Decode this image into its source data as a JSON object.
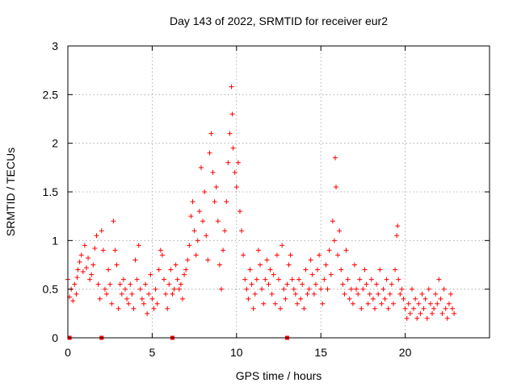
{
  "chart_data": {
    "type": "scatter",
    "title": "Day 143 of 2022, SRMTID for receiver eur2",
    "xlabel": "GPS time / hours",
    "ylabel": "SRMTID / TECUs",
    "xlim": [
      0,
      25
    ],
    "ylim": [
      0,
      3
    ],
    "x_ticks": [
      "0",
      "5",
      "10",
      "15",
      "20"
    ],
    "y_ticks": [
      "0",
      "0.5",
      "1",
      "1.5",
      "2",
      "2.5",
      "3"
    ],
    "grid": true,
    "marker": "+",
    "series_color": "#ff0000",
    "series": [
      {
        "name": "SRMTID",
        "points": [
          [
            0.0,
            0.6
          ],
          [
            0.1,
            0.42
          ],
          [
            0.2,
            0.5
          ],
          [
            0.3,
            0.38
          ],
          [
            0.4,
            0.55
          ],
          [
            0.5,
            0.45
          ],
          [
            0.55,
            0.62
          ],
          [
            0.6,
            0.7
          ],
          [
            0.7,
            0.78
          ],
          [
            0.8,
            0.85
          ],
          [
            0.9,
            0.68
          ],
          [
            1.0,
            0.95
          ],
          [
            1.1,
            0.72
          ],
          [
            1.2,
            0.82
          ],
          [
            1.3,
            0.6
          ],
          [
            1.4,
            0.65
          ],
          [
            1.5,
            0.75
          ],
          [
            1.6,
            0.92
          ],
          [
            1.7,
            1.05
          ],
          [
            1.8,
            0.55
          ],
          [
            1.9,
            0.4
          ],
          [
            2.0,
            1.1
          ],
          [
            2.1,
            0.9
          ],
          [
            2.2,
            0.5
          ],
          [
            2.3,
            0.45
          ],
          [
            2.4,
            0.7
          ],
          [
            2.5,
            0.55
          ],
          [
            2.6,
            0.35
          ],
          [
            2.7,
            1.2
          ],
          [
            2.8,
            0.9
          ],
          [
            2.9,
            0.75
          ],
          [
            3.0,
            0.3
          ],
          [
            3.1,
            0.55
          ],
          [
            3.2,
            0.45
          ],
          [
            3.3,
            0.6
          ],
          [
            3.4,
            0.5
          ],
          [
            3.5,
            0.4
          ],
          [
            3.6,
            0.35
          ],
          [
            3.7,
            0.55
          ],
          [
            3.8,
            0.45
          ],
          [
            3.9,
            0.3
          ],
          [
            4.0,
            0.8
          ],
          [
            4.1,
            0.6
          ],
          [
            4.2,
            0.95
          ],
          [
            4.3,
            0.5
          ],
          [
            4.4,
            0.4
          ],
          [
            4.5,
            0.35
          ],
          [
            4.6,
            0.55
          ],
          [
            4.7,
            0.25
          ],
          [
            4.8,
            0.45
          ],
          [
            4.9,
            0.65
          ],
          [
            5.0,
            0.4
          ],
          [
            5.1,
            0.3
          ],
          [
            5.2,
            0.5
          ],
          [
            5.3,
            0.35
          ],
          [
            5.4,
            0.7
          ],
          [
            5.5,
            0.9
          ],
          [
            5.6,
            0.85
          ],
          [
            5.7,
            0.6
          ],
          [
            5.8,
            0.45
          ],
          [
            5.9,
            0.3
          ],
          [
            6.0,
            0.55
          ],
          [
            6.1,
            0.7
          ],
          [
            6.2,
            0.45
          ],
          [
            6.3,
            0.5
          ],
          [
            6.4,
            0.75
          ],
          [
            6.5,
            0.6
          ],
          [
            6.6,
            0.5
          ],
          [
            6.7,
            0.55
          ],
          [
            6.8,
            0.4
          ],
          [
            6.9,
            0.65
          ],
          [
            7.0,
            0.7
          ],
          [
            7.1,
            0.8
          ],
          [
            7.2,
            0.95
          ],
          [
            7.3,
            1.25
          ],
          [
            7.4,
            1.4
          ],
          [
            7.5,
            1.1
          ],
          [
            7.6,
            0.85
          ],
          [
            7.7,
            1.0
          ],
          [
            7.8,
            1.3
          ],
          [
            7.9,
            1.75
          ],
          [
            8.0,
            1.2
          ],
          [
            8.1,
            1.5
          ],
          [
            8.2,
            1.05
          ],
          [
            8.3,
            0.8
          ],
          [
            8.4,
            1.9
          ],
          [
            8.5,
            2.1
          ],
          [
            8.6,
            1.7
          ],
          [
            8.7,
            1.4
          ],
          [
            8.8,
            1.55
          ],
          [
            8.9,
            1.2
          ],
          [
            9.0,
            0.75
          ],
          [
            9.1,
            0.5
          ],
          [
            9.2,
            0.9
          ],
          [
            9.3,
            1.1
          ],
          [
            9.4,
            1.4
          ],
          [
            9.5,
            1.8
          ],
          [
            9.6,
            2.1
          ],
          [
            9.7,
            2.58
          ],
          [
            9.75,
            2.3
          ],
          [
            9.8,
            1.95
          ],
          [
            9.9,
            1.7
          ],
          [
            10.0,
            1.55
          ],
          [
            10.1,
            1.8
          ],
          [
            10.2,
            1.3
          ],
          [
            10.3,
            1.1
          ],
          [
            10.4,
            0.85
          ],
          [
            10.5,
            0.6
          ],
          [
            10.6,
            0.5
          ],
          [
            10.7,
            0.4
          ],
          [
            10.8,
            0.7
          ],
          [
            10.9,
            0.55
          ],
          [
            11.0,
            0.3
          ],
          [
            11.1,
            0.45
          ],
          [
            11.2,
            0.6
          ],
          [
            11.3,
            0.9
          ],
          [
            11.4,
            0.75
          ],
          [
            11.5,
            0.5
          ],
          [
            11.6,
            0.35
          ],
          [
            11.7,
            0.6
          ],
          [
            11.8,
            0.8
          ],
          [
            11.9,
            0.55
          ],
          [
            12.0,
            0.7
          ],
          [
            12.1,
            0.45
          ],
          [
            12.2,
            0.65
          ],
          [
            12.3,
            0.35
          ],
          [
            12.4,
            0.85
          ],
          [
            12.5,
            0.6
          ],
          [
            12.6,
            0.3
          ],
          [
            12.7,
            0.95
          ],
          [
            12.8,
            0.5
          ],
          [
            12.9,
            0.4
          ],
          [
            13.0,
            0.55
          ],
          [
            13.1,
            0.75
          ],
          [
            13.2,
            0.85
          ],
          [
            13.3,
            0.6
          ],
          [
            13.4,
            0.5
          ],
          [
            13.5,
            0.45
          ],
          [
            13.6,
            0.35
          ],
          [
            13.7,
            0.6
          ],
          [
            13.8,
            0.4
          ],
          [
            13.9,
            0.55
          ],
          [
            14.0,
            0.3
          ],
          [
            14.1,
            0.7
          ],
          [
            14.2,
            0.45
          ],
          [
            14.3,
            0.5
          ],
          [
            14.4,
            0.8
          ],
          [
            14.5,
            0.65
          ],
          [
            14.6,
            0.45
          ],
          [
            14.7,
            0.55
          ],
          [
            14.8,
            0.7
          ],
          [
            14.9,
            0.85
          ],
          [
            15.0,
            0.5
          ],
          [
            15.1,
            0.35
          ],
          [
            15.2,
            0.6
          ],
          [
            15.3,
            0.75
          ],
          [
            15.4,
            0.5
          ],
          [
            15.5,
            0.9
          ],
          [
            15.6,
            0.65
          ],
          [
            15.7,
            1.2
          ],
          [
            15.8,
            1.0
          ],
          [
            15.85,
            1.85
          ],
          [
            15.9,
            1.55
          ],
          [
            16.0,
            0.85
          ],
          [
            16.1,
            1.1
          ],
          [
            16.2,
            0.7
          ],
          [
            16.3,
            0.55
          ],
          [
            16.4,
            0.45
          ],
          [
            16.5,
            0.9
          ],
          [
            16.6,
            0.6
          ],
          [
            16.7,
            0.4
          ],
          [
            16.8,
            0.5
          ],
          [
            16.9,
            0.35
          ],
          [
            17.0,
            0.75
          ],
          [
            17.1,
            0.5
          ],
          [
            17.2,
            0.45
          ],
          [
            17.3,
            0.6
          ],
          [
            17.4,
            0.3
          ],
          [
            17.5,
            0.5
          ],
          [
            17.6,
            0.7
          ],
          [
            17.7,
            0.55
          ],
          [
            17.8,
            0.35
          ],
          [
            17.9,
            0.45
          ],
          [
            18.0,
            0.6
          ],
          [
            18.1,
            0.4
          ],
          [
            18.2,
            0.3
          ],
          [
            18.3,
            0.55
          ],
          [
            18.4,
            0.45
          ],
          [
            18.5,
            0.7
          ],
          [
            18.6,
            0.35
          ],
          [
            18.7,
            0.5
          ],
          [
            18.8,
            0.4
          ],
          [
            18.9,
            0.6
          ],
          [
            19.0,
            0.3
          ],
          [
            19.1,
            0.45
          ],
          [
            19.2,
            0.55
          ],
          [
            19.3,
            0.35
          ],
          [
            19.4,
            0.7
          ],
          [
            19.5,
            1.05
          ],
          [
            19.55,
            1.15
          ],
          [
            19.6,
            0.6
          ],
          [
            19.7,
            0.45
          ],
          [
            19.8,
            0.5
          ],
          [
            19.9,
            0.4
          ],
          [
            20.0,
            0.3
          ],
          [
            20.1,
            0.2
          ],
          [
            20.2,
            0.35
          ],
          [
            20.3,
            0.25
          ],
          [
            20.4,
            0.5
          ],
          [
            20.5,
            0.3
          ],
          [
            20.6,
            0.4
          ],
          [
            20.7,
            0.2
          ],
          [
            20.8,
            0.35
          ],
          [
            20.9,
            0.25
          ],
          [
            21.0,
            0.45
          ],
          [
            21.1,
            0.3
          ],
          [
            21.2,
            0.4
          ],
          [
            21.3,
            0.2
          ],
          [
            21.4,
            0.5
          ],
          [
            21.5,
            0.35
          ],
          [
            21.6,
            0.25
          ],
          [
            21.7,
            0.3
          ],
          [
            21.8,
            0.45
          ],
          [
            21.9,
            0.35
          ],
          [
            22.0,
            0.6
          ],
          [
            22.1,
            0.4
          ],
          [
            22.2,
            0.25
          ],
          [
            22.3,
            0.5
          ],
          [
            22.4,
            0.3
          ],
          [
            22.5,
            0.2
          ],
          [
            22.6,
            0.35
          ],
          [
            22.7,
            0.45
          ],
          [
            22.8,
            0.3
          ],
          [
            22.9,
            0.25
          ]
        ]
      }
    ],
    "gap_markers_x": [
      0.1,
      2.0,
      6.2,
      13.0
    ]
  }
}
